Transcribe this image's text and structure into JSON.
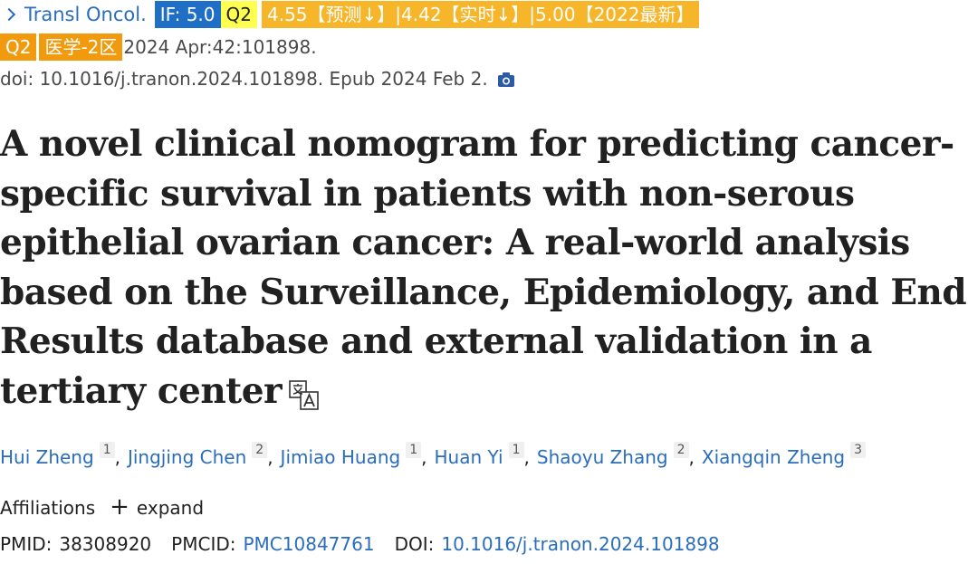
{
  "citation": {
    "journal": "Transl Oncol.",
    "if_badge": "IF: 5.0",
    "quartile_badge": "Q2",
    "metrics_badge": "4.55【预测↓】|4.42【实时↓】|5.00【2022最新】",
    "quartile_badge_2": "Q2",
    "category_badge": "医学-2区",
    "date_volume": "2024 Apr:42:101898.",
    "doi_epub": "doi: 10.1016/j.tranon.2024.101898. Epub 2024 Feb 2."
  },
  "title": "A novel clinical nomogram for predicting cancer-specific survival in patients with non-serous epithelial ovarian cancer: A real-world analysis based on the Surveillance, Epidemiology, and End Results database and external validation in a tertiary center",
  "authors": [
    {
      "name": "Hui Zheng",
      "aff": "1"
    },
    {
      "name": "Jingjing Chen",
      "aff": "2"
    },
    {
      "name": "Jimiao Huang",
      "aff": "1"
    },
    {
      "name": "Huan Yi",
      "aff": "1"
    },
    {
      "name": "Shaoyu Zhang",
      "aff": "2"
    },
    {
      "name": "Xiangqin Zheng",
      "aff": "3"
    }
  ],
  "affiliations": {
    "label": "Affiliations",
    "expand_label": "expand"
  },
  "identifiers": {
    "pmid_label": "PMID:",
    "pmid": "38308920",
    "pmcid_label": "PMCID:",
    "pmcid": "PMC10847761",
    "doi_label": "DOI:",
    "doi": "10.1016/j.tranon.2024.101898"
  },
  "colors": {
    "link": "#2a6dbd",
    "if_badge": "#1f6fc7",
    "q2_yellow": "#ffff4f",
    "metrics_badge": "#f7b52a",
    "orange_badge": "#f29a0e"
  },
  "icons": {
    "journal_chevron": "chevron-right-icon",
    "doi_camera": "camera-icon",
    "title_translate": "translate-icon"
  }
}
